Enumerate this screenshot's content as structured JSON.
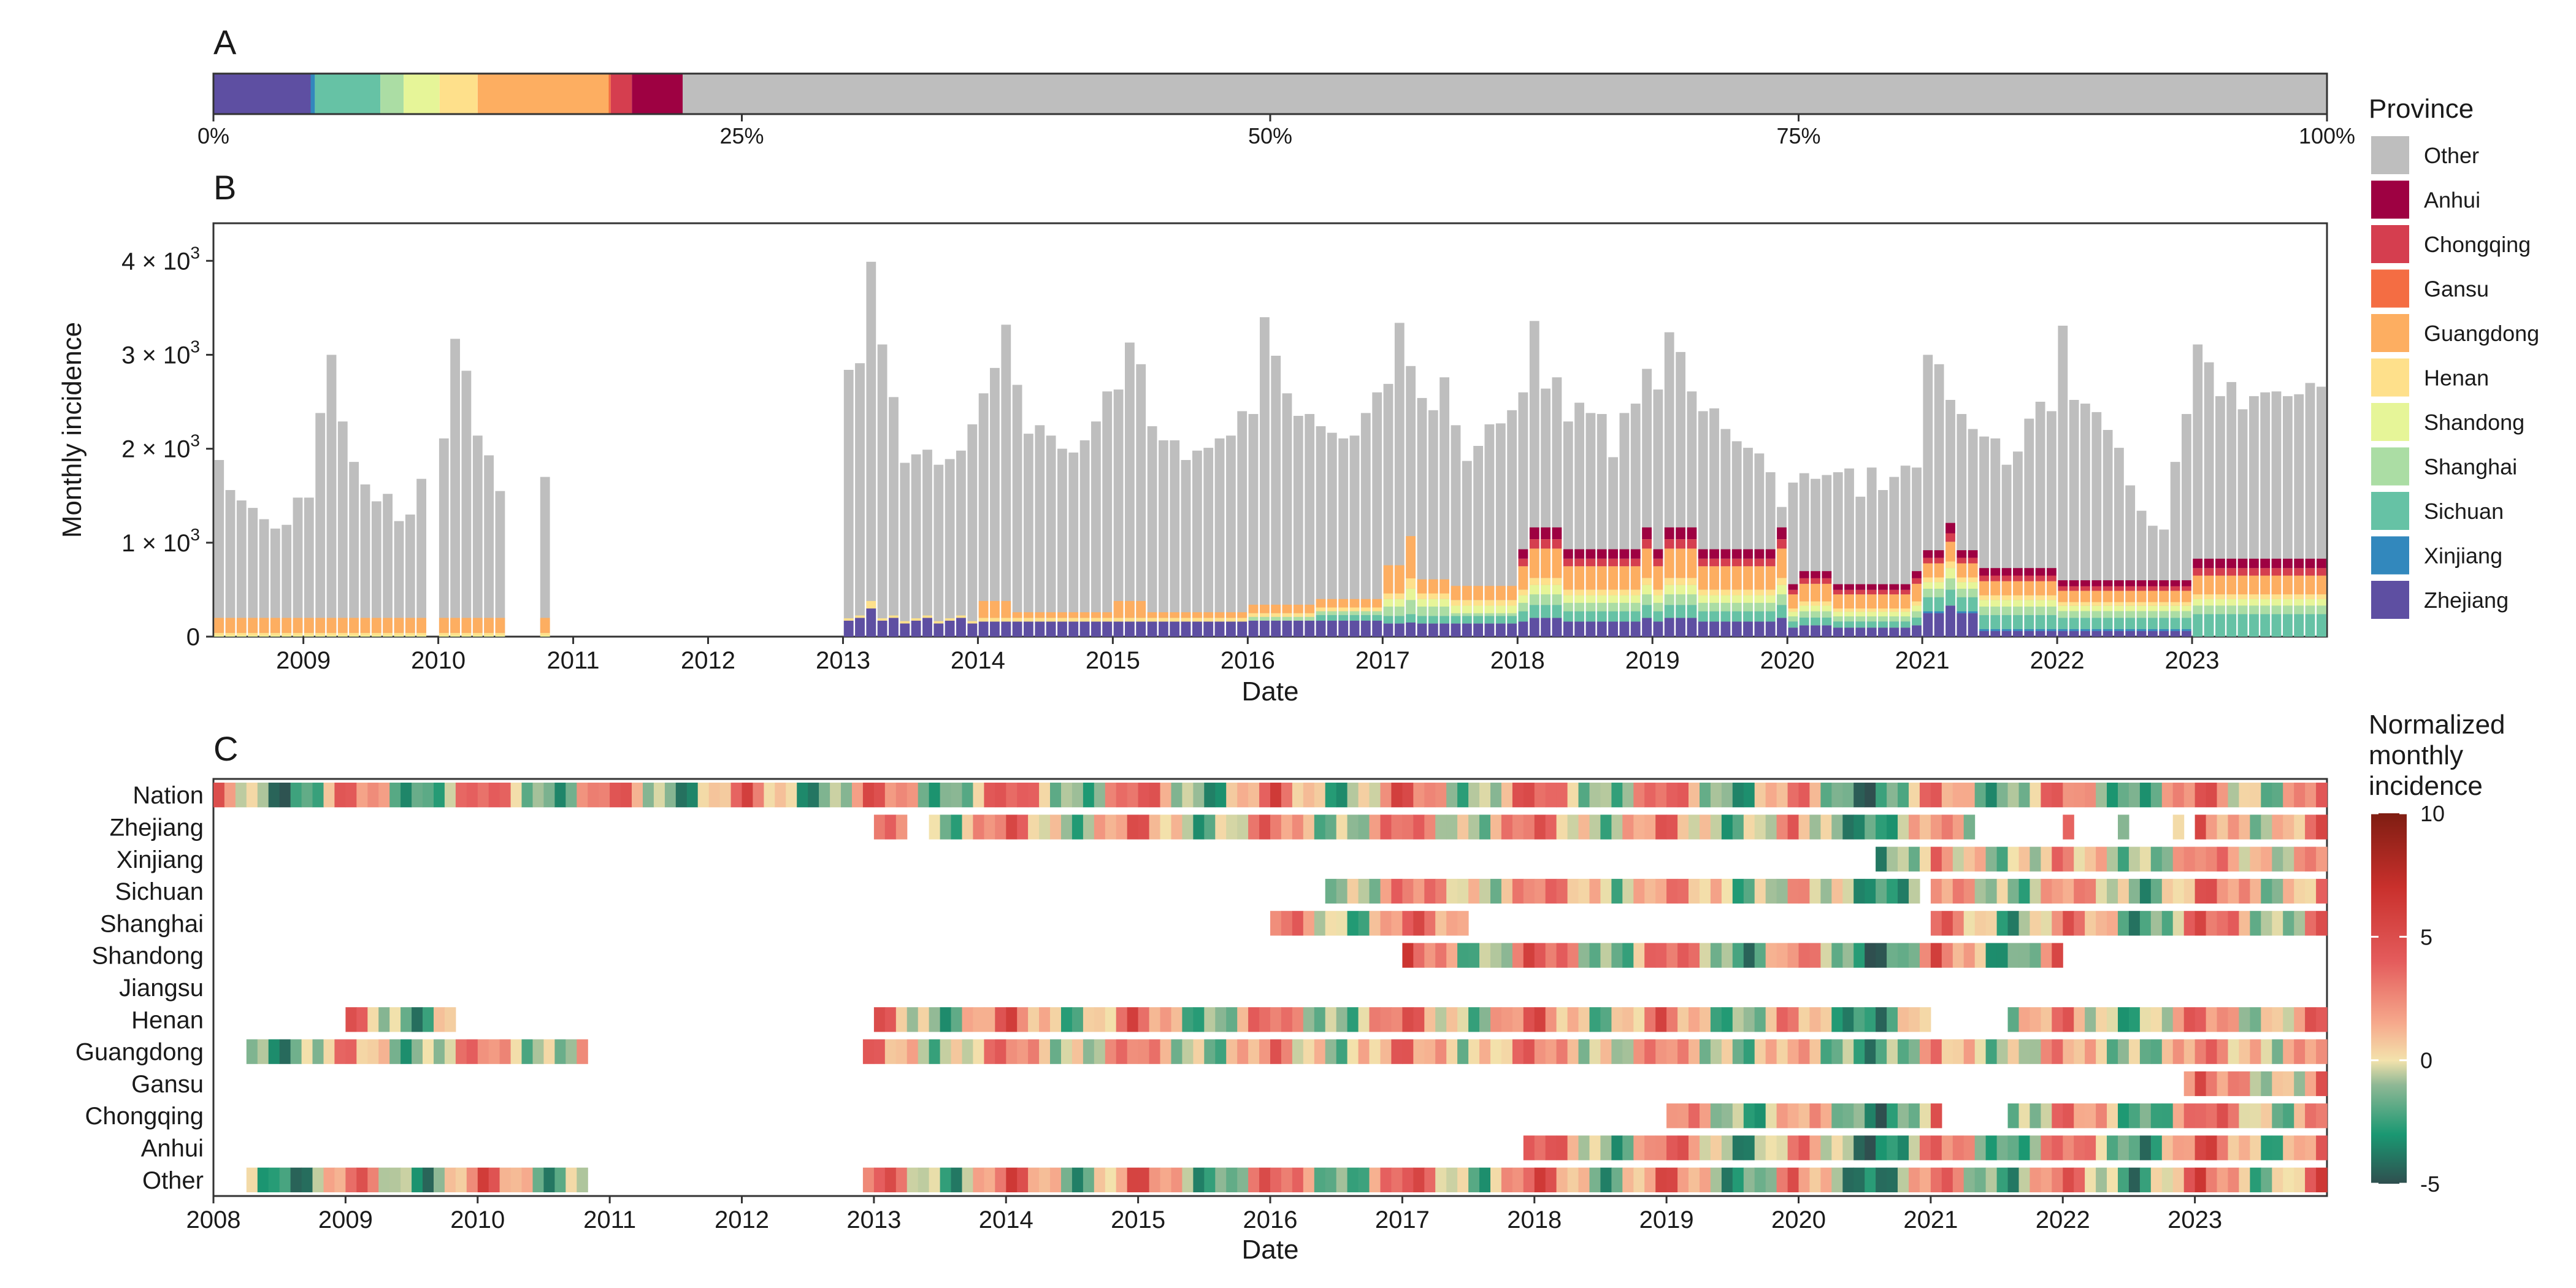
{
  "panels": {
    "a": {
      "letter": "A"
    },
    "b": {
      "letter": "B"
    },
    "c": {
      "letter": "C"
    }
  },
  "province_colors": {
    "Other": "#bebebe",
    "Anhui": "#9e0142",
    "Chongqing": "#d53e4f",
    "Gansu": "#f46d43",
    "Guangdong": "#fdae61",
    "Henan": "#fee08b",
    "Shandong": "#e6f598",
    "Shanghai": "#abdda4",
    "Sichuan": "#66c2a5",
    "Xinjiang": "#3288bd",
    "Zhejiang": "#5e4fa2"
  },
  "legend_province": {
    "title": "Province",
    "items": [
      "Other",
      "Anhui",
      "Chongqing",
      "Gansu",
      "Guangdong",
      "Henan",
      "Shandong",
      "Shanghai",
      "Sichuan",
      "Xinjiang",
      "Zhejiang"
    ]
  },
  "legend_gradient": {
    "title_lines": [
      "Normalized",
      "monthly",
      "incidence"
    ],
    "ticks": [
      10,
      5,
      0,
      -5
    ],
    "tick_labels": [
      "10",
      "5",
      "0",
      "-5"
    ],
    "range": [
      -5,
      10
    ],
    "stops": [
      {
        "v": -5,
        "c": "#2f4f4f"
      },
      {
        "v": -3,
        "c": "#1a9872"
      },
      {
        "v": -1,
        "c": "#8fb895"
      },
      {
        "v": 0,
        "c": "#f3e2ac"
      },
      {
        "v": 1.5,
        "c": "#f6a98c"
      },
      {
        "v": 4,
        "c": "#e45c5c"
      },
      {
        "v": 7,
        "c": "#c9302c"
      },
      {
        "v": 10,
        "c": "#7f1d12"
      }
    ]
  },
  "chart_data": [
    {
      "type": "bar",
      "panel": "A",
      "orientation": "horizontal-stacked",
      "xlim": [
        0,
        100
      ],
      "x_ticks": [
        0,
        25,
        50,
        75,
        100
      ],
      "x_tick_labels": [
        "0%",
        "25%",
        "50%",
        "75%",
        "100%"
      ],
      "segments": [
        {
          "province": "Zhejiang",
          "share_pct": 4.6
        },
        {
          "province": "Xinjiang",
          "share_pct": 0.2
        },
        {
          "province": "Sichuan",
          "share_pct": 3.1
        },
        {
          "province": "Shanghai",
          "share_pct": 1.1
        },
        {
          "province": "Shandong",
          "share_pct": 1.7
        },
        {
          "province": "Henan",
          "share_pct": 1.8
        },
        {
          "province": "Guangdong",
          "share_pct": 6.2
        },
        {
          "province": "Gansu",
          "share_pct": 0.1
        },
        {
          "province": "Chongqing",
          "share_pct": 1.0
        },
        {
          "province": "Anhui",
          "share_pct": 2.4
        },
        {
          "province": "Other",
          "share_pct": 77.8
        }
      ]
    },
    {
      "type": "bar",
      "panel": "B",
      "stacked": true,
      "xlabel": "Date",
      "ylabel": "Monthly incidence",
      "ylim": [
        0,
        4400
      ],
      "y_ticks": [
        0,
        1000,
        2000,
        3000,
        4000
      ],
      "y_tick_labels": [
        "0",
        "1 × 10",
        "2 × 10",
        "3 × 10",
        "4 × 10"
      ],
      "y_tick_exponent": "3",
      "x_ticks": [
        "2009",
        "2010",
        "2011",
        "2012",
        "2013",
        "2014",
        "2015",
        "2016",
        "2017",
        "2018",
        "2019",
        "2020",
        "2021",
        "2022",
        "2023"
      ],
      "x_start": "2008-05",
      "x_end": "2023-12",
      "note_bars": "Month keys YYYY-MM. Totals read from bar tops; province layers from the colored bottoms.",
      "totals": {
        "2008-05": 1880,
        "2008-06": 1560,
        "2008-07": 1450,
        "2008-08": 1370,
        "2008-09": 1250,
        "2008-10": 1150,
        "2008-11": 1190,
        "2008-12": 1480,
        "2009-01": 1480,
        "2009-02": 2380,
        "2009-03": 3000,
        "2009-04": 2290,
        "2009-05": 1860,
        "2009-06": 1620,
        "2009-07": 1440,
        "2009-08": 1520,
        "2009-09": 1230,
        "2009-10": 1300,
        "2009-11": 1680,
        "2010-01": 2110,
        "2010-02": 3170,
        "2010-03": 2830,
        "2010-04": 2140,
        "2010-05": 1930,
        "2010-06": 1550,
        "2010-10": 1700,
        "2013-01": 2840,
        "2013-02": 2910,
        "2013-03": 3990,
        "2013-04": 3110,
        "2013-05": 2550,
        "2013-06": 1850,
        "2013-07": 1940,
        "2013-08": 1990,
        "2013-09": 1830,
        "2013-10": 1890,
        "2013-11": 1980,
        "2013-12": 2260,
        "2014-01": 2590,
        "2014-02": 2860,
        "2014-03": 3320,
        "2014-04": 2680,
        "2014-05": 2160,
        "2014-06": 2250,
        "2014-07": 2140,
        "2014-08": 2000,
        "2014-09": 1960,
        "2014-10": 2090,
        "2014-11": 2290,
        "2014-12": 2610,
        "2015-01": 2630,
        "2015-02": 3130,
        "2015-03": 2900,
        "2015-04": 2240,
        "2015-05": 2090,
        "2015-06": 2090,
        "2015-07": 1880,
        "2015-08": 1980,
        "2015-09": 2010,
        "2015-10": 2110,
        "2015-11": 2140,
        "2015-12": 2400,
        "2016-01": 2370,
        "2016-02": 3400,
        "2016-03": 2990,
        "2016-04": 2590,
        "2016-05": 2350,
        "2016-06": 2370,
        "2016-07": 2240,
        "2016-08": 2170,
        "2016-09": 2110,
        "2016-10": 2140,
        "2016-11": 2380,
        "2016-12": 2600,
        "2017-01": 2690,
        "2017-02": 3340,
        "2017-03": 2880,
        "2017-04": 2540,
        "2017-05": 2410,
        "2017-06": 2760,
        "2017-07": 2250,
        "2017-08": 1870,
        "2017-09": 2030,
        "2017-10": 2260,
        "2017-11": 2270,
        "2017-12": 2410,
        "2018-01": 2600,
        "2018-02": 3360,
        "2018-03": 2640,
        "2018-04": 2760,
        "2018-05": 2290,
        "2018-06": 2490,
        "2018-07": 2380,
        "2018-08": 2370,
        "2018-09": 1910,
        "2018-10": 2380,
        "2018-11": 2480,
        "2018-12": 2850,
        "2019-01": 2630,
        "2019-02": 3240,
        "2019-03": 3030,
        "2019-04": 2610,
        "2019-05": 2400,
        "2019-06": 2430,
        "2019-07": 2210,
        "2019-08": 2080,
        "2019-09": 2010,
        "2019-10": 1950,
        "2019-11": 1750,
        "2019-12": 1380,
        "2020-01": 1640,
        "2020-02": 1740,
        "2020-03": 1680,
        "2020-04": 1720,
        "2020-05": 1750,
        "2020-06": 1790,
        "2020-07": 1490,
        "2020-08": 1800,
        "2020-09": 1560,
        "2020-10": 1700,
        "2020-11": 1820,
        "2020-12": 1800,
        "2021-01": 3000,
        "2021-02": 2900,
        "2021-03": 2520,
        "2021-04": 2370,
        "2021-05": 2210,
        "2021-06": 2130,
        "2021-07": 2110,
        "2021-08": 1830,
        "2021-09": 1970,
        "2021-10": 2320,
        "2021-11": 2500,
        "2021-12": 2400,
        "2022-01": 3310,
        "2022-02": 2520,
        "2022-03": 2480,
        "2022-04": 2390,
        "2022-05": 2200,
        "2022-06": 2010,
        "2022-07": 1610,
        "2022-08": 1340,
        "2022-09": 1180,
        "2022-10": 1140,
        "2022-11": 1860,
        "2022-12": 2370,
        "2023-01": 3110,
        "2023-02": 2920,
        "2023-03": 2560,
        "2023-04": 2710,
        "2023-05": 2420,
        "2023-06": 2560,
        "2023-07": 2600,
        "2023-08": 2610,
        "2023-09": 2560,
        "2023-10": 2580,
        "2023-11": 2700,
        "2023-12": 2660
      },
      "province_breakdown": {
        "2008-2010": {
          "Guangdong": 160,
          "Henan": 30,
          "Shandong": 10
        },
        "2013-03": {
          "Zhejiang": 300,
          "Henan": 80
        },
        "2017-03": {
          "Zhejiang": 150,
          "Sichuan": 90,
          "Shanghai": 150,
          "Shandong": 120,
          "Henan": 110,
          "Guangdong": 450
        },
        "2018-2019 typical": {
          "Zhejiang": 160,
          "Sichuan": 110,
          "Shanghai": 90,
          "Shandong": 80,
          "Henan": 60,
          "Guangdong": 250,
          "Chongqing": 80,
          "Anhui": 100
        },
        "2021-03": {
          "Zhejiang": 330,
          "Sichuan": 170,
          "Shanghai": 120,
          "Shandong": 110,
          "Henan": 70,
          "Guangdong": 210,
          "Chongqing": 90,
          "Anhui": 110
        },
        "2023 typical": {
          "Sichuan": 240,
          "Shanghai": 90,
          "Shandong": 70,
          "Henan": 50,
          "Guangdong": 200,
          "Chongqing": 80,
          "Anhui": 100
        }
      }
    },
    {
      "type": "heatmap",
      "panel": "C",
      "xlabel": "Date",
      "x_ticks": [
        "2008",
        "2009",
        "2010",
        "2011",
        "2012",
        "2013",
        "2014",
        "2015",
        "2016",
        "2017",
        "2018",
        "2019",
        "2020",
        "2021",
        "2022",
        "2023"
      ],
      "rows": [
        "Nation",
        "Zhejiang",
        "Xinjiang",
        "Sichuan",
        "Shanghai",
        "Shandong",
        "Jiangsu",
        "Henan",
        "Guangdong",
        "Gansu",
        "Chongqing",
        "Anhui",
        "Other"
      ],
      "color_range": [
        -5,
        10
      ],
      "note": "Each row: months with data between start/end, value sequence (one value per month) in normalized units. Missing months are blank.",
      "coverage": {
        "Nation": [
          [
            "2008-01",
            "2023-12"
          ]
        ],
        "Zhejiang": [
          [
            "2013-01",
            "2013-03"
          ],
          [
            "2013-06",
            "2020-12"
          ],
          [
            "2021-01",
            "2021-04"
          ],
          [
            "2022-01",
            "2022-01"
          ],
          [
            "2022-06",
            "2022-06"
          ],
          [
            "2022-11",
            "2022-11"
          ],
          [
            "2023-01",
            "2023-12"
          ]
        ],
        "Xinjiang": [
          [
            "2020-08",
            "2023-12"
          ]
        ],
        "Sichuan": [
          [
            "2016-06",
            "2020-11"
          ],
          [
            "2021-01",
            "2023-12"
          ]
        ],
        "Shanghai": [
          [
            "2016-01",
            "2017-06"
          ],
          [
            "2021-01",
            "2023-12"
          ]
        ],
        "Shandong": [
          [
            "2017-01",
            "2021-12"
          ]
        ],
        "Jiangsu": [],
        "Henan": [
          [
            "2009-01",
            "2009-10"
          ],
          [
            "2013-01",
            "2020-12"
          ],
          [
            "2021-08",
            "2023-12"
          ]
        ],
        "Guangdong": [
          [
            "2008-04",
            "2010-10"
          ],
          [
            "2012-12",
            "2023-12"
          ]
        ],
        "Gansu": [
          [
            "2022-12",
            "2023-12"
          ]
        ],
        "Chongqing": [
          [
            "2019-01",
            "2021-01"
          ],
          [
            "2021-08",
            "2023-12"
          ]
        ],
        "Anhui": [
          [
            "2017-12",
            "2023-12"
          ]
        ],
        "Other": [
          [
            "2008-04",
            "2010-10"
          ],
          [
            "2012-12",
            "2023-12"
          ]
        ]
      },
      "seasonal_pattern": [
        3.5,
        2.5,
        1.5,
        0.5,
        -0.5,
        -1.5,
        -2.0,
        -2.0,
        -1.0,
        0.0,
        1.5,
        3.0
      ],
      "yearly_offset": {
        "2008": -1.0,
        "2009": 0.0,
        "2010": 0.5,
        "2013": 0.5,
        "2014": 0.8,
        "2015": 0.2,
        "2016": 0.5,
        "2017": 1.0,
        "2018": 0.8,
        "2019": 0.0,
        "2020": -1.5,
        "2021": 0.2,
        "2022": -0.2,
        "2023": 1.2
      }
    }
  ]
}
